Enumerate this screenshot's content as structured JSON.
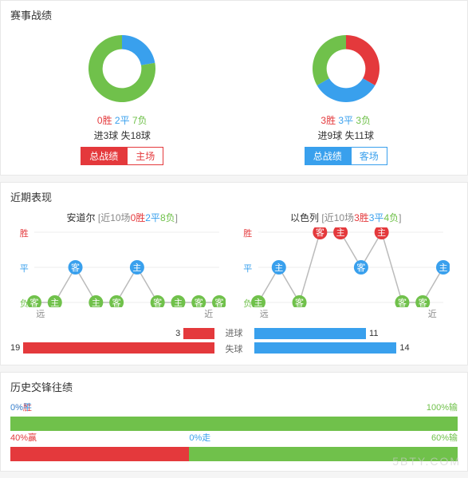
{
  "colors": {
    "win": "#e4393c",
    "draw": "#39a0ed",
    "loss": "#70c14b",
    "track_bg": "#ffffff",
    "panel_border": "#e8e8e8",
    "grey_text": "#888888"
  },
  "panel1": {
    "title": "赛事战绩",
    "left": {
      "donut": {
        "segments": [
          {
            "value": 0,
            "color": "#e4393c"
          },
          {
            "value": 2,
            "color": "#39a0ed"
          },
          {
            "value": 7,
            "color": "#70c14b"
          }
        ],
        "inner_ratio": 0.58
      },
      "wld": [
        {
          "txt": "0胜",
          "color": "#e4393c"
        },
        {
          "txt": "2平",
          "color": "#39a0ed"
        },
        {
          "txt": "7负",
          "color": "#70c14b"
        }
      ],
      "goals": "进3球 失18球",
      "tabs": {
        "color": "#e4393c",
        "active": 0,
        "items": [
          "总战绩",
          "主场"
        ]
      }
    },
    "right": {
      "donut": {
        "segments": [
          {
            "value": 3,
            "color": "#e4393c"
          },
          {
            "value": 3,
            "color": "#39a0ed"
          },
          {
            "value": 3,
            "color": "#70c14b"
          }
        ],
        "inner_ratio": 0.58
      },
      "wld": [
        {
          "txt": "3胜",
          "color": "#e4393c"
        },
        {
          "txt": "3平",
          "color": "#39a0ed"
        },
        {
          "txt": "3负",
          "color": "#70c14b"
        }
      ],
      "goals": "进9球 失11球",
      "tabs": {
        "color": "#39a0ed",
        "active": 0,
        "items": [
          "总战绩",
          "客场"
        ]
      }
    }
  },
  "panel2": {
    "title": "近期表现",
    "y_labels": [
      {
        "txt": "胜",
        "color": "#e4393c"
      },
      {
        "txt": "平",
        "color": "#39a0ed"
      },
      {
        "txt": "负",
        "color": "#70c14b"
      }
    ],
    "far": "远",
    "near": "近",
    "node_font": "11px",
    "left": {
      "name": "安道尔",
      "sub_prefix": "[近10场",
      "wld": [
        {
          "txt": "0胜",
          "color": "#e4393c"
        },
        {
          "txt": "2平",
          "color": "#39a0ed"
        },
        {
          "txt": "8负",
          "color": "#70c14b"
        }
      ],
      "sub_suffix": "]",
      "points": [
        {
          "lvl": 2,
          "ha": "客"
        },
        {
          "lvl": 2,
          "ha": "主"
        },
        {
          "lvl": 1,
          "ha": "客"
        },
        {
          "lvl": 2,
          "ha": "主"
        },
        {
          "lvl": 2,
          "ha": "客"
        },
        {
          "lvl": 1,
          "ha": "主"
        },
        {
          "lvl": 2,
          "ha": "客"
        },
        {
          "lvl": 2,
          "ha": "主"
        },
        {
          "lvl": 2,
          "ha": "客"
        },
        {
          "lvl": 2,
          "ha": "客"
        }
      ]
    },
    "right": {
      "name": "以色列",
      "sub_prefix": "[近10场",
      "wld": [
        {
          "txt": "3胜",
          "color": "#e4393c"
        },
        {
          "txt": "3平",
          "color": "#39a0ed"
        },
        {
          "txt": "4负",
          "color": "#70c14b"
        }
      ],
      "sub_suffix": "]",
      "points": [
        {
          "lvl": 2,
          "ha": "主"
        },
        {
          "lvl": 1,
          "ha": "主"
        },
        {
          "lvl": 2,
          "ha": "客"
        },
        {
          "lvl": 0,
          "ha": "客"
        },
        {
          "lvl": 0,
          "ha": "主"
        },
        {
          "lvl": 1,
          "ha": "客"
        },
        {
          "lvl": 0,
          "ha": "主"
        },
        {
          "lvl": 2,
          "ha": "客"
        },
        {
          "lvl": 2,
          "ha": "客"
        },
        {
          "lvl": 1,
          "ha": "主"
        }
      ]
    },
    "goalbars": {
      "max": 20,
      "labels": {
        "for": "进球",
        "against": "失球"
      },
      "left": {
        "for": {
          "val": 3,
          "color": "#e4393c"
        },
        "against": {
          "val": 19,
          "color": "#e4393c"
        }
      },
      "right": {
        "for": {
          "val": 11,
          "color": "#39a0ed"
        },
        "against": {
          "val": 14,
          "color": "#39a0ed"
        }
      }
    }
  },
  "panel3": {
    "title": "历史交锋往绩",
    "row1": [
      {
        "pct": 0,
        "label": "0%胜",
        "color": "#e4393c",
        "label_color": "#e4393c",
        "label_side": "left"
      },
      {
        "pct": 0,
        "label": "0%平",
        "color": "#39a0ed",
        "label_color": "#39a0ed",
        "label_side": "left"
      },
      {
        "pct": 100,
        "label": "100%输",
        "color": "#70c14b",
        "label_color": "#70c14b",
        "label_side": "right"
      }
    ],
    "row2": [
      {
        "pct": 40,
        "label": "40%赢",
        "color": "#e4393c",
        "label_color": "#e4393c",
        "label_side": "left"
      },
      {
        "pct": 0,
        "label": "0%走",
        "color": "#39a0ed",
        "label_color": "#39a0ed",
        "label_side": "left"
      },
      {
        "pct": 60,
        "label": "60%输",
        "color": "#70c14b",
        "label_color": "#70c14b",
        "label_side": "right"
      }
    ],
    "watermark": "5BTY.COM"
  }
}
